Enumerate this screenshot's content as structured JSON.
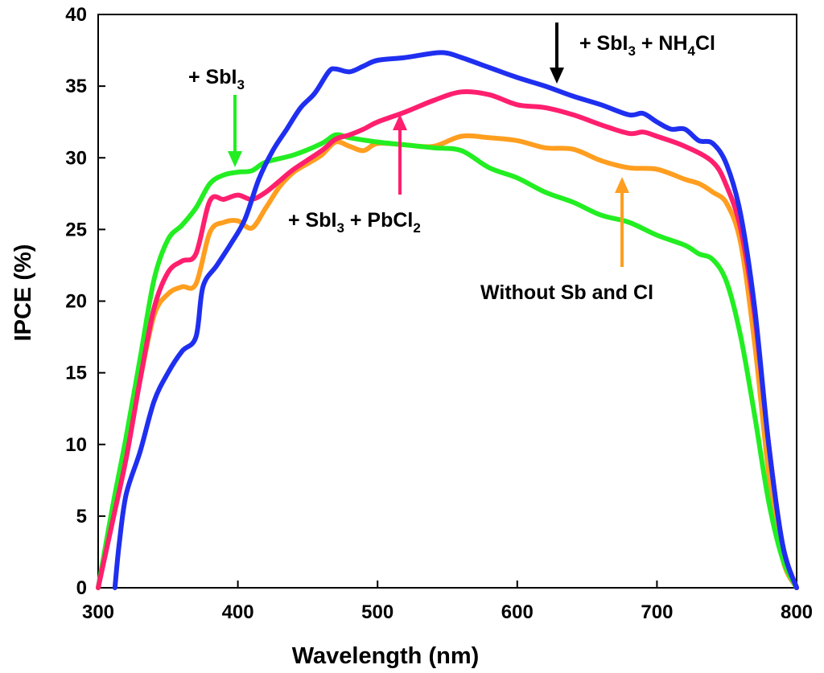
{
  "chart_data": {
    "type": "line",
    "title": "",
    "xlabel": "Wavelength (nm)",
    "ylabel": "IPCE (%)",
    "xlim": [
      300,
      800
    ],
    "ylim": [
      0,
      40
    ],
    "xticks": [
      300,
      400,
      500,
      600,
      700,
      800
    ],
    "yticks": [
      0,
      5,
      10,
      15,
      20,
      25,
      30,
      35,
      40
    ],
    "grid": false,
    "series": [
      {
        "name": "Without Sb and Cl",
        "color": "#ff9e1f",
        "x": [
          300,
          310,
          320,
          330,
          340,
          350,
          360,
          370,
          380,
          390,
          400,
          410,
          420,
          430,
          440,
          450,
          460,
          470,
          480,
          490,
          500,
          520,
          540,
          560,
          580,
          600,
          620,
          640,
          660,
          680,
          700,
          720,
          730,
          740,
          750,
          760,
          770,
          780,
          790,
          800
        ],
        "y": [
          0,
          5,
          9.5,
          14.5,
          19,
          20.5,
          21,
          21.2,
          24.8,
          25.5,
          25.6,
          25.1,
          26.5,
          28,
          29,
          29.6,
          30.2,
          31.1,
          30.8,
          30.5,
          31,
          30.9,
          30.8,
          31.5,
          31.4,
          31.2,
          30.7,
          30.6,
          29.8,
          29.3,
          29.2,
          28.5,
          28.2,
          27.6,
          26.8,
          24,
          17,
          8,
          2,
          0
        ]
      },
      {
        "name": "+ SbI3",
        "color": "#22ee22",
        "x": [
          300,
          310,
          320,
          330,
          340,
          350,
          360,
          370,
          380,
          390,
          400,
          410,
          420,
          440,
          460,
          470,
          480,
          500,
          520,
          540,
          560,
          580,
          600,
          620,
          640,
          660,
          680,
          700,
          720,
          730,
          740,
          750,
          760,
          770,
          780,
          790,
          800
        ],
        "y": [
          0,
          5.5,
          10.5,
          16,
          21.5,
          24.3,
          25.3,
          26.5,
          28.2,
          28.8,
          29,
          29.1,
          29.7,
          30.2,
          31,
          31.6,
          31.4,
          31.1,
          30.9,
          30.7,
          30.5,
          29.3,
          28.6,
          27.6,
          26.9,
          26,
          25.5,
          24.6,
          23.9,
          23.3,
          22.9,
          21.3,
          17.5,
          12,
          6,
          2,
          0
        ]
      },
      {
        "name": "+ SbI3 + PbCl2",
        "color": "#ff1f6e",
        "x": [
          300,
          310,
          320,
          330,
          340,
          350,
          360,
          370,
          380,
          390,
          400,
          410,
          420,
          430,
          440,
          460,
          470,
          480,
          490,
          500,
          520,
          540,
          560,
          580,
          600,
          620,
          640,
          660,
          680,
          690,
          700,
          720,
          740,
          750,
          760,
          770,
          780,
          790,
          800
        ],
        "y": [
          0,
          4.5,
          9,
          14.5,
          19.5,
          22,
          22.8,
          23.3,
          27,
          27.1,
          27.4,
          27.1,
          27.6,
          28.4,
          29.2,
          30.5,
          31.3,
          31.6,
          32,
          32.5,
          33.2,
          34,
          34.6,
          34.4,
          33.7,
          33.5,
          33,
          32.3,
          31.7,
          31.8,
          31.5,
          30.8,
          29.7,
          28,
          25,
          19,
          10,
          3,
          0
        ]
      },
      {
        "name": "+ SbI3 + NH4Cl",
        "color": "#1f2ff0",
        "x": [
          312,
          315,
          320,
          330,
          340,
          350,
          360,
          370,
          375,
          385,
          395,
          405,
          415,
          425,
          435,
          445,
          455,
          465,
          470,
          480,
          490,
          500,
          520,
          540,
          550,
          560,
          580,
          600,
          620,
          640,
          660,
          680,
          690,
          700,
          710,
          720,
          730,
          740,
          750,
          760,
          770,
          780,
          790,
          800
        ],
        "y": [
          0,
          3,
          6.5,
          9.5,
          13,
          15,
          16.5,
          17.5,
          21,
          22.5,
          24,
          25.7,
          28.5,
          30.5,
          32,
          33.5,
          34.5,
          36,
          36.2,
          36,
          36.4,
          36.8,
          37,
          37.3,
          37.3,
          37,
          36.3,
          35.6,
          35,
          34.3,
          33.7,
          33,
          33.1,
          32.5,
          32,
          32,
          31.2,
          31,
          29.5,
          26,
          19.5,
          10,
          3,
          0
        ]
      }
    ],
    "annotations": [
      {
        "id": "sbi3",
        "parts": [
          "+ SbI",
          "3"
        ],
        "color": "#22ee22"
      },
      {
        "id": "nh4cl",
        "parts": [
          "+ SbI",
          "3",
          " + NH",
          "4",
          "Cl"
        ],
        "color": "#000000"
      },
      {
        "id": "pbcl2",
        "parts": [
          "+ SbI",
          "3",
          " + PbCl",
          "2"
        ],
        "color": "#ff1f6e"
      },
      {
        "id": "nosb",
        "parts": [
          "Without Sb and Cl"
        ],
        "color": "#ff9e1f"
      }
    ]
  }
}
